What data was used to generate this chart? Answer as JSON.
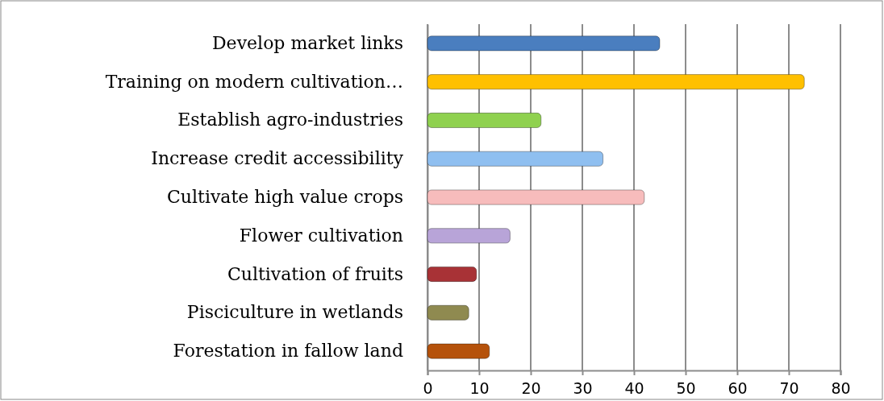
{
  "chart_data": {
    "type": "bar",
    "orientation": "horizontal",
    "categories": [
      "Develop market links",
      "Training on modern cultivation…",
      "Establish agro-industries",
      "Increase credit accessibility",
      "Cultivate high value crops",
      "Flower cultivation",
      "Cultivation of fruits",
      "Pisciculture in wetlands",
      "Forestation  in fallow land"
    ],
    "values": [
      45,
      73,
      22,
      34,
      42,
      16,
      9.5,
      8,
      12
    ],
    "colors": [
      "#4a7ebf",
      "#ffc000",
      "#8fd14f",
      "#8fbff0",
      "#f7bcbc",
      "#b8a4d8",
      "#a83236",
      "#8f8a50",
      "#b5520b"
    ],
    "xlim": [
      0,
      80
    ],
    "xticks": [
      0,
      10,
      20,
      30,
      40,
      50,
      60,
      70,
      80
    ],
    "grid": "x"
  }
}
